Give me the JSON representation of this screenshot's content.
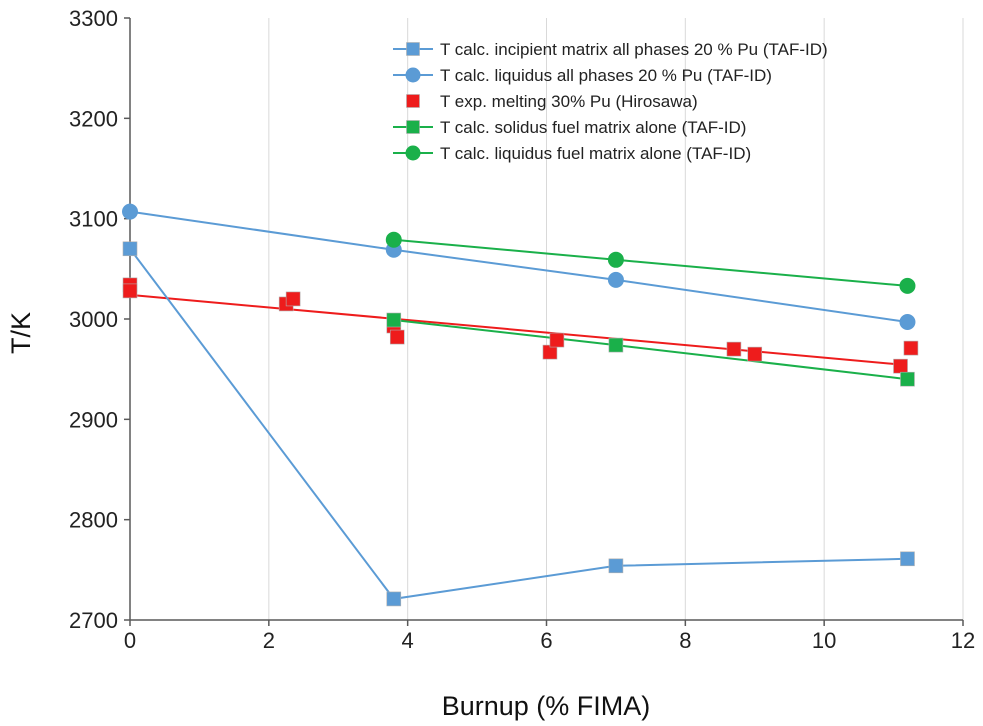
{
  "chart_data": {
    "type": "scatter",
    "xlabel": "Burnup (% FIMA)",
    "ylabel": "T/K",
    "xlim": [
      0,
      12
    ],
    "ylim": [
      2700,
      3300
    ],
    "xticks": [
      0,
      2,
      4,
      6,
      8,
      10,
      12
    ],
    "yticks": [
      2700,
      2800,
      2900,
      3000,
      3100,
      3200,
      3300
    ],
    "grid": "vertical",
    "legend_position": "top-right",
    "series": [
      {
        "name": "T calc. incipient matrix all phases 20 % Pu (TAF-ID)",
        "color": "#5b9bd5",
        "marker": "square",
        "line": true,
        "points": [
          [
            0,
            3070
          ],
          [
            3.8,
            2721
          ],
          [
            7.0,
            2754
          ],
          [
            11.2,
            2761
          ]
        ]
      },
      {
        "name": "T calc. liquidus all phases 20 % Pu (TAF-ID)",
        "color": "#5b9bd5",
        "marker": "circle",
        "line": true,
        "points": [
          [
            0,
            3107
          ],
          [
            3.8,
            3069
          ],
          [
            7.0,
            3039
          ],
          [
            11.2,
            2997
          ]
        ]
      },
      {
        "name": "T exp. melting 30% Pu (Hirosawa)",
        "color": "#ee1c1c",
        "marker": "square",
        "line": false,
        "points": [
          [
            0,
            3034
          ],
          [
            0,
            3028
          ],
          [
            2.25,
            3015
          ],
          [
            2.35,
            3020
          ],
          [
            3.8,
            2993
          ],
          [
            3.85,
            2982
          ],
          [
            6.05,
            2967
          ],
          [
            6.15,
            2979
          ],
          [
            8.7,
            2970
          ],
          [
            9.0,
            2965
          ],
          [
            11.1,
            2953
          ],
          [
            11.25,
            2971
          ]
        ]
      },
      {
        "name": "T calc. solidus fuel matrix alone (TAF-ID)",
        "color": "#1ab04a",
        "marker": "square",
        "line": true,
        "points": [
          [
            3.8,
            2999
          ],
          [
            7.0,
            2974
          ],
          [
            11.2,
            2940
          ]
        ]
      },
      {
        "name": "T calc. liquidus fuel matrix alone (TAF-ID)",
        "color": "#1ab04a",
        "marker": "circle",
        "line": true,
        "points": [
          [
            3.8,
            3079
          ],
          [
            7.0,
            3059
          ],
          [
            11.2,
            3033
          ]
        ]
      }
    ],
    "trendlines": [
      {
        "of_series": "T exp. melting 30% Pu (Hirosawa)",
        "color": "#ee1c1c",
        "x": [
          0,
          11.2
        ],
        "y": [
          3024,
          2954
        ]
      }
    ]
  }
}
